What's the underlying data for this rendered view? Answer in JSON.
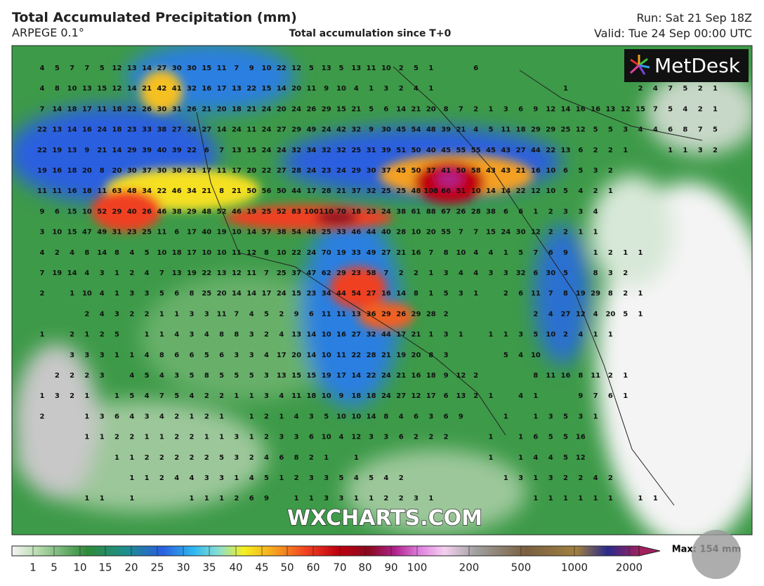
{
  "header": {
    "title": "Total Accumulated Precipitation (mm)",
    "model": "ARPEGE 0.1°",
    "subtitle": "Total accumulation since T+0",
    "run": "Run: Sat 21 Sep 18Z",
    "valid": "Valid: Tue 24 Sep 00:00 UTC"
  },
  "logo": "MetDesk",
  "watermark": "WXCHARTS.COM",
  "map": {
    "rows": [
      [
        4,
        5,
        7,
        7,
        5,
        12,
        13,
        14,
        27,
        30,
        30,
        15,
        11,
        7,
        9,
        10,
        22,
        12,
        5,
        13,
        5,
        13,
        11,
        10,
        2,
        5,
        1,
        null,
        null,
        6
      ],
      [
        4,
        8,
        10,
        13,
        15,
        12,
        14,
        21,
        42,
        41,
        32,
        16,
        17,
        13,
        22,
        15,
        14,
        20,
        11,
        9,
        10,
        4,
        1,
        3,
        2,
        4,
        1,
        null,
        null,
        null,
        null,
        null,
        null,
        null,
        null,
        1,
        null,
        null,
        null,
        null,
        2,
        4,
        7,
        5,
        2,
        1
      ],
      [
        7,
        14,
        18,
        17,
        11,
        18,
        22,
        26,
        30,
        31,
        26,
        21,
        20,
        18,
        21,
        24,
        20,
        24,
        26,
        29,
        15,
        21,
        5,
        6,
        14,
        21,
        20,
        8,
        7,
        2,
        1,
        3,
        6,
        9,
        12,
        14,
        16,
        16,
        13,
        12,
        15,
        7,
        5,
        4,
        2,
        1
      ],
      [
        22,
        13,
        14,
        16,
        24,
        18,
        23,
        33,
        38,
        27,
        24,
        27,
        14,
        24,
        11,
        24,
        27,
        29,
        49,
        24,
        42,
        32,
        9,
        30,
        45,
        54,
        48,
        39,
        21,
        4,
        5,
        11,
        18,
        29,
        29,
        25,
        12,
        5,
        5,
        3,
        4,
        4,
        6,
        8,
        7,
        5
      ],
      [
        22,
        19,
        13,
        9,
        21,
        14,
        29,
        39,
        40,
        39,
        22,
        6,
        7,
        13,
        15,
        24,
        24,
        32,
        34,
        32,
        32,
        25,
        31,
        39,
        51,
        50,
        40,
        45,
        55,
        55,
        45,
        43,
        27,
        44,
        22,
        13,
        6,
        2,
        2,
        1,
        null,
        null,
        1,
        1,
        3,
        2
      ],
      [
        19,
        16,
        18,
        20,
        8,
        20,
        30,
        37,
        30,
        30,
        21,
        17,
        11,
        17,
        20,
        22,
        27,
        28,
        24,
        23,
        24,
        29,
        30,
        37,
        45,
        50,
        37,
        41,
        50,
        58,
        43,
        43,
        21,
        16,
        10,
        6,
        5,
        3,
        2
      ],
      [
        11,
        11,
        16,
        18,
        11,
        63,
        48,
        34,
        22,
        46,
        34,
        21,
        8,
        21,
        50,
        56,
        50,
        44,
        17,
        28,
        21,
        37,
        32,
        25,
        25,
        48,
        108,
        66,
        51,
        10,
        14,
        14,
        22,
        12,
        10,
        5,
        4,
        2,
        1
      ],
      [
        9,
        6,
        15,
        10,
        52,
        29,
        40,
        26,
        46,
        38,
        29,
        48,
        52,
        46,
        19,
        25,
        52,
        83,
        100,
        110,
        70,
        18,
        23,
        24,
        38,
        61,
        88,
        67,
        26,
        28,
        38,
        6,
        6,
        1,
        2,
        3,
        3,
        4
      ],
      [
        3,
        10,
        15,
        47,
        49,
        31,
        23,
        25,
        11,
        6,
        17,
        40,
        19,
        10,
        14,
        57,
        38,
        54,
        48,
        25,
        33,
        46,
        44,
        40,
        28,
        10,
        20,
        55,
        7,
        7,
        15,
        24,
        30,
        12,
        2,
        2,
        1,
        1
      ],
      [
        4,
        2,
        4,
        8,
        14,
        8,
        4,
        5,
        10,
        18,
        17,
        10,
        10,
        11,
        12,
        8,
        10,
        22,
        24,
        70,
        19,
        33,
        49,
        27,
        21,
        16,
        7,
        8,
        10,
        4,
        4,
        1,
        5,
        7,
        6,
        9,
        null,
        1,
        2,
        1,
        1
      ],
      [
        7,
        19,
        14,
        4,
        3,
        1,
        2,
        4,
        7,
        13,
        19,
        22,
        13,
        12,
        11,
        7,
        25,
        37,
        47,
        62,
        29,
        23,
        58,
        7,
        2,
        2,
        1,
        3,
        4,
        4,
        3,
        3,
        32,
        6,
        30,
        5,
        null,
        8,
        3,
        2
      ],
      [
        2,
        null,
        1,
        10,
        4,
        1,
        3,
        3,
        5,
        6,
        8,
        25,
        20,
        14,
        14,
        17,
        24,
        15,
        23,
        34,
        44,
        54,
        27,
        16,
        14,
        8,
        1,
        5,
        3,
        1,
        null,
        2,
        6,
        11,
        7,
        8,
        19,
        29,
        8,
        2,
        1
      ],
      [
        null,
        null,
        null,
        2,
        4,
        3,
        2,
        2,
        1,
        1,
        3,
        3,
        11,
        7,
        4,
        5,
        2,
        9,
        6,
        11,
        11,
        13,
        36,
        29,
        26,
        29,
        28,
        2,
        null,
        null,
        null,
        null,
        null,
        2,
        4,
        27,
        12,
        4,
        20,
        5,
        1
      ],
      [
        1,
        null,
        2,
        1,
        2,
        5,
        null,
        1,
        1,
        4,
        3,
        4,
        8,
        8,
        3,
        2,
        4,
        13,
        14,
        10,
        16,
        27,
        32,
        44,
        17,
        21,
        1,
        3,
        1,
        null,
        1,
        1,
        3,
        5,
        10,
        2,
        4,
        1,
        1
      ],
      [
        null,
        null,
        3,
        3,
        3,
        1,
        1,
        4,
        8,
        6,
        6,
        5,
        6,
        3,
        3,
        4,
        17,
        20,
        14,
        10,
        11,
        22,
        28,
        21,
        19,
        20,
        8,
        3,
        null,
        null,
        null,
        5,
        4,
        10
      ],
      [
        null,
        2,
        2,
        2,
        3,
        null,
        4,
        5,
        4,
        3,
        5,
        8,
        5,
        5,
        5,
        3,
        13,
        15,
        15,
        19,
        17,
        14,
        22,
        24,
        21,
        16,
        18,
        9,
        12,
        2,
        null,
        null,
        null,
        8,
        11,
        16,
        8,
        11,
        2,
        1
      ],
      [
        1,
        3,
        2,
        1,
        null,
        1,
        5,
        4,
        7,
        5,
        4,
        2,
        2,
        1,
        1,
        3,
        4,
        11,
        18,
        10,
        9,
        18,
        18,
        24,
        27,
        12,
        17,
        6,
        13,
        2,
        1,
        null,
        4,
        1,
        null,
        null,
        9,
        7,
        6,
        1
      ],
      [
        2,
        null,
        null,
        1,
        3,
        6,
        4,
        3,
        4,
        2,
        1,
        2,
        1,
        null,
        1,
        2,
        1,
        4,
        3,
        5,
        10,
        10,
        14,
        8,
        4,
        6,
        3,
        6,
        9,
        null,
        null,
        1,
        null,
        1,
        3,
        5,
        3,
        1
      ],
      [
        null,
        null,
        null,
        1,
        1,
        2,
        2,
        1,
        1,
        2,
        2,
        1,
        1,
        3,
        1,
        2,
        3,
        3,
        6,
        10,
        4,
        12,
        3,
        3,
        6,
        2,
        2,
        2,
        null,
        null,
        1,
        null,
        1,
        6,
        5,
        5,
        16
      ],
      [
        null,
        null,
        null,
        null,
        null,
        1,
        1,
        2,
        2,
        2,
        2,
        2,
        5,
        3,
        2,
        4,
        6,
        8,
        2,
        1,
        null,
        1,
        null,
        null,
        null,
        null,
        null,
        null,
        null,
        null,
        1,
        null,
        1,
        4,
        4,
        5,
        12
      ],
      [
        null,
        null,
        null,
        null,
        null,
        null,
        1,
        1,
        2,
        4,
        4,
        3,
        3,
        1,
        4,
        5,
        1,
        2,
        3,
        3,
        5,
        4,
        5,
        4,
        2,
        null,
        null,
        null,
        null,
        null,
        null,
        1,
        3,
        1,
        3,
        2,
        2,
        4,
        2
      ],
      [
        null,
        null,
        null,
        1,
        1,
        null,
        1,
        null,
        null,
        null,
        1,
        1,
        1,
        2,
        6,
        9,
        null,
        1,
        1,
        3,
        3,
        1,
        1,
        2,
        2,
        3,
        1,
        null,
        null,
        null,
        null,
        null,
        null,
        1,
        1,
        1,
        1,
        1,
        1,
        null,
        1,
        1
      ]
    ]
  },
  "legend": {
    "ticks": [
      1,
      5,
      10,
      15,
      20,
      25,
      30,
      35,
      40,
      45,
      50,
      60,
      70,
      80,
      90,
      100,
      200,
      500,
      1000,
      2000
    ],
    "max_label": "Max: 154 mm"
  }
}
